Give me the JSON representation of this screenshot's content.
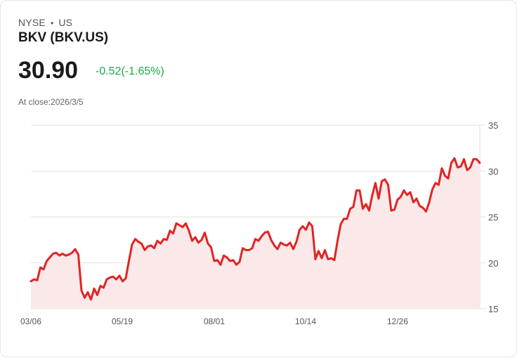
{
  "header": {
    "exchange": "NYSE",
    "region": "US",
    "separator": "•",
    "title": "BKV (BKV.US)",
    "price": "30.90",
    "change": "-0.52(-1.65%)",
    "change_color": "#1ea84a",
    "close_label": "At close:2026/3/5"
  },
  "colors": {
    "line": "#e02424",
    "fill": "#fbe8e8",
    "grid": "#e2e2e2"
  },
  "chart_data": {
    "type": "area",
    "title": "BKV (BKV.US)",
    "xlabel": "",
    "ylabel": "",
    "ylim": [
      15,
      35
    ],
    "yticks": [
      15,
      20,
      25,
      30,
      35
    ],
    "xticks": [
      "03/06",
      "05/19",
      "08/01",
      "10/14",
      "12/26"
    ],
    "grid": true,
    "y_axis_position": "right",
    "series": [
      {
        "name": "BKV",
        "values": [
          18.0,
          18.2,
          18.1,
          19.5,
          19.3,
          20.2,
          20.6,
          21.0,
          21.1,
          20.8,
          21.0,
          20.8,
          20.9,
          21.1,
          21.5,
          20.9,
          17.0,
          16.2,
          16.8,
          16.0,
          17.2,
          16.5,
          17.5,
          17.3,
          18.2,
          18.4,
          18.5,
          18.2,
          18.6,
          18.0,
          18.3,
          20.2,
          22.0,
          22.6,
          22.3,
          22.1,
          21.4,
          21.8,
          21.9,
          21.6,
          22.4,
          22.1,
          22.6,
          22.5,
          23.5,
          23.2,
          24.3,
          24.1,
          23.9,
          24.3,
          23.5,
          22.4,
          22.8,
          22.2,
          22.5,
          23.3,
          22.1,
          21.7,
          20.2,
          20.3,
          19.8,
          20.8,
          20.6,
          20.2,
          20.3,
          19.8,
          20.1,
          21.6,
          21.4,
          21.4,
          21.6,
          22.6,
          22.4,
          22.9,
          23.3,
          23.4,
          22.5,
          21.9,
          21.5,
          22.2,
          22.0,
          21.9,
          22.2,
          21.5,
          22.3,
          23.6,
          24.0,
          23.6,
          24.4,
          24.0,
          20.4,
          21.3,
          20.5,
          21.4,
          20.4,
          20.5,
          20.3,
          22.4,
          24.2,
          24.8,
          24.8,
          25.9,
          26.1,
          27.9,
          27.9,
          25.9,
          26.4,
          25.7,
          27.4,
          28.7,
          27.0,
          28.9,
          29.1,
          28.5,
          25.7,
          25.8,
          26.9,
          27.2,
          27.9,
          27.4,
          27.7,
          26.6,
          27.0,
          26.2,
          26.0,
          25.6,
          26.6,
          28.0,
          28.7,
          28.5,
          30.3,
          29.5,
          29.2,
          30.9,
          31.4,
          30.4,
          30.5,
          31.3,
          30.1,
          30.4,
          31.3,
          31.3,
          30.9
        ]
      }
    ]
  },
  "yaxis_labels": [
    "35",
    "30",
    "25",
    "20",
    "15"
  ],
  "xaxis_labels": [
    "03/06",
    "05/19",
    "08/01",
    "10/14",
    "12/26"
  ]
}
